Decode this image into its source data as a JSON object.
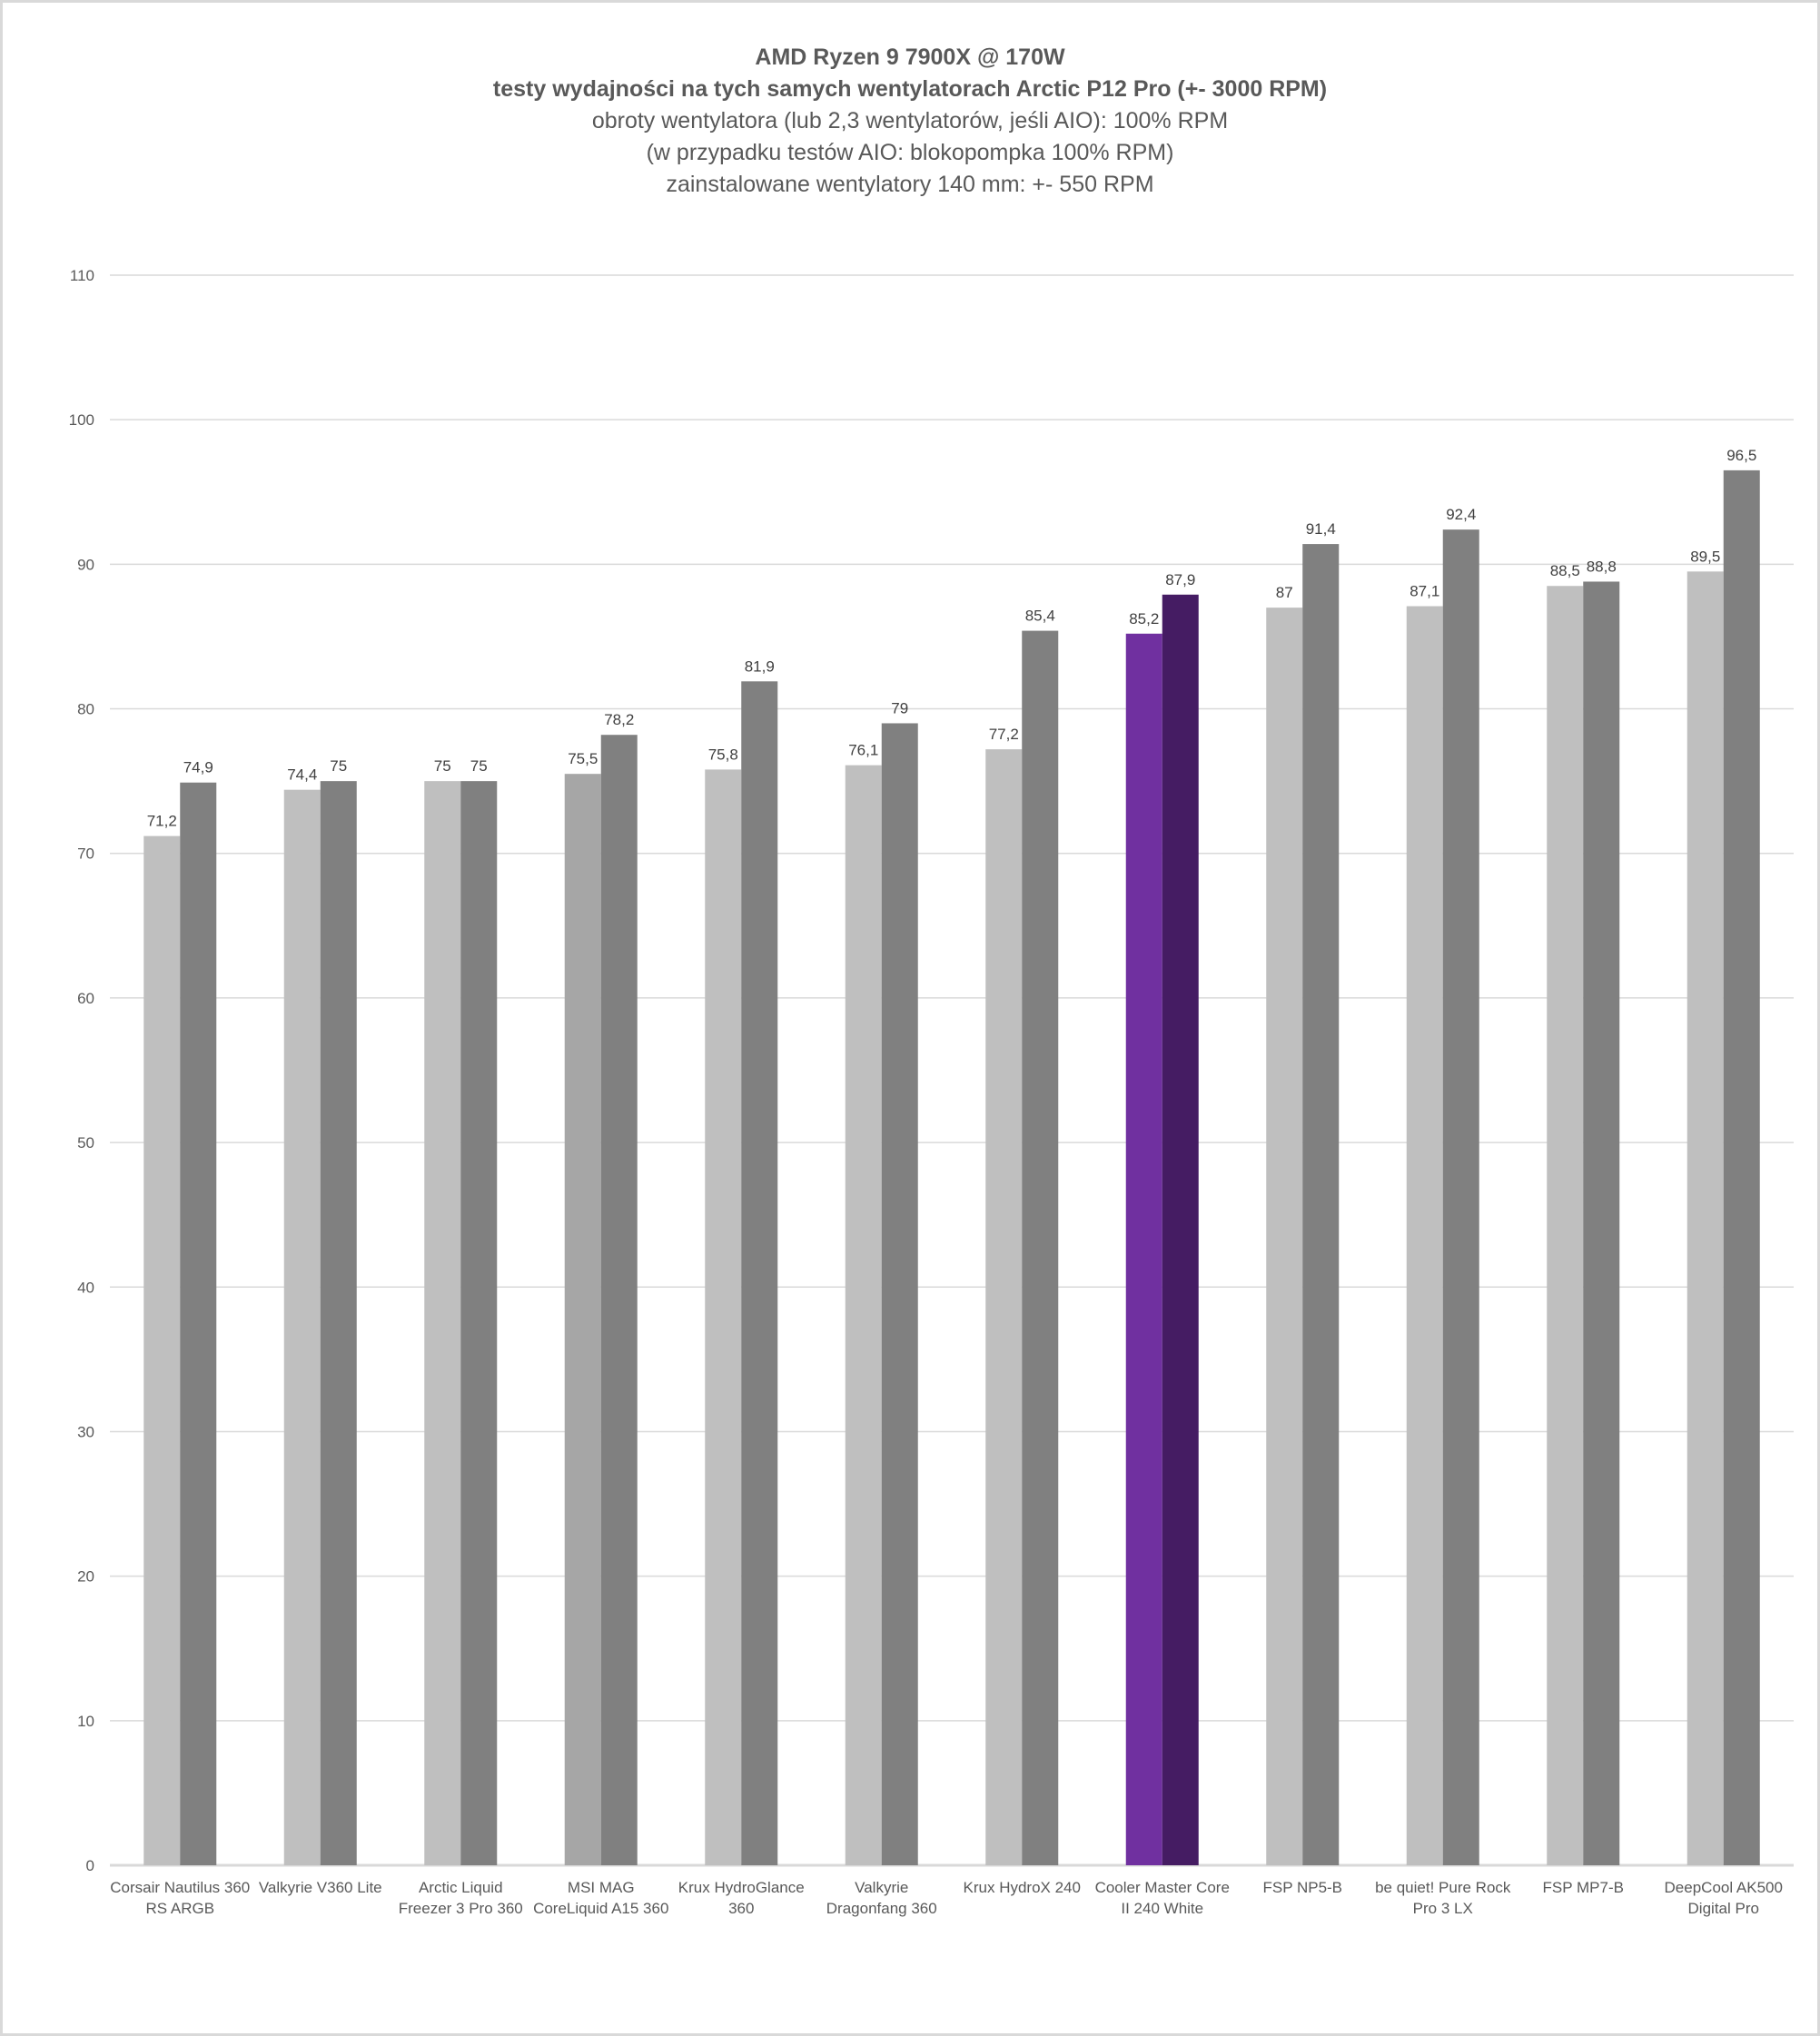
{
  "chart_data": {
    "type": "bar",
    "title": "AMD Ryzen 9 7900X @ 170W",
    "subtitle_bold": "testy wydajności na tych samych wentylatorach Arctic P12 Pro (+- 3000 RPM)",
    "subtitles": [
      "obroty wentylatora (lub 2,3 wentylatorów, jeśli AIO): 100% RPM",
      "(w przypadku testów AIO: blokopompka 100% RPM)",
      "zainstalowane wentylatory 140 mm: +- 550 RPM"
    ],
    "xlabel": "",
    "ylabel": "",
    "ylim": [
      0,
      110
    ],
    "yticks": [
      0,
      10,
      20,
      30,
      40,
      50,
      60,
      70,
      80,
      90,
      100,
      110
    ],
    "grid": true,
    "legend": "none",
    "categories": [
      [
        "Corsair Nautilus 360",
        "RS ARGB"
      ],
      [
        "Valkyrie V360 Lite"
      ],
      [
        "Arctic Liquid",
        "Freezer 3 Pro 360"
      ],
      [
        "MSI MAG",
        "CoreLiquid A15 360"
      ],
      [
        "Krux HydroGlance",
        "360"
      ],
      [
        "Valkyrie",
        "Dragonfang 360"
      ],
      [
        "Krux HydroX 240"
      ],
      [
        "Cooler Master Core",
        "II 240 White"
      ],
      [
        "FSP NP5-B"
      ],
      [
        "be quiet! Pure Rock",
        "Pro 3 LX"
      ],
      [
        "FSP MP7-B"
      ],
      [
        "DeepCool AK500",
        "Digital Pro"
      ]
    ],
    "series": [
      {
        "values": [
          71.2,
          74.4,
          75,
          75.5,
          75.8,
          76.1,
          77.2,
          85.2,
          87,
          87.1,
          88.5,
          89.5
        ],
        "labels": [
          "71,2",
          "74,4",
          "75",
          "75,5",
          "75,8",
          "76,1",
          "77,2",
          "85,2",
          "87",
          "87,1",
          "88,5",
          "89,5"
        ],
        "color": "#bfbfbf",
        "point_colors": {
          "3": "#a6a6a6",
          "7": "#7030a0"
        }
      },
      {
        "values": [
          74.9,
          75,
          75,
          78.2,
          81.9,
          79,
          85.4,
          87.9,
          91.4,
          92.4,
          88.8,
          96.5
        ],
        "labels": [
          "74,9",
          "75",
          "75",
          "78,2",
          "81,9",
          "79",
          "85,4",
          "87,9",
          "91,4",
          "92,4",
          "88,8",
          "96,5"
        ],
        "color": "#808080",
        "point_colors": {
          "7": "#451c63"
        }
      }
    ],
    "colors": {
      "gridline": "#d9d9d9",
      "text": "#595959",
      "highlight": "#7030a0",
      "highlight_dark": "#451c63"
    }
  }
}
